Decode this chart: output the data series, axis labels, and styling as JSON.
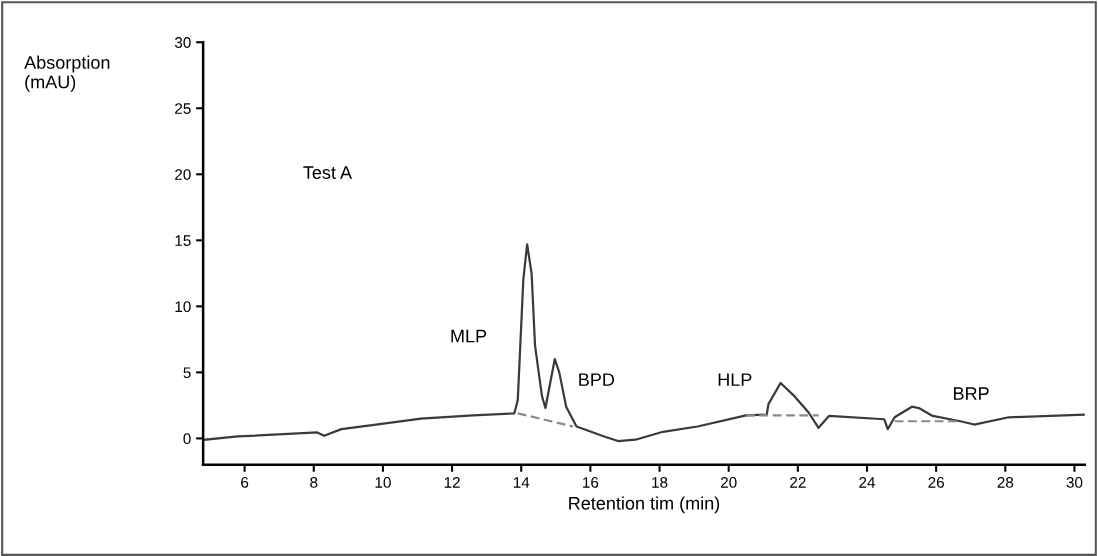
{
  "chart_data": {
    "type": "line",
    "xlabel": "Retention tim (min)",
    "ylabel": "Absorption\n(mAU)",
    "xlim": [
      4.8,
      30.3
    ],
    "xticks": [
      6,
      8,
      10,
      12,
      14,
      16,
      18,
      20,
      22,
      24,
      26,
      28,
      30
    ],
    "ylim": [
      -2,
      30
    ],
    "yticks": [
      0,
      5,
      10,
      15,
      20,
      25,
      30
    ],
    "grid": false,
    "marker": "none",
    "series": [
      {
        "color": "#3a3a3a",
        "line_style": "solid",
        "x": [
          4.86,
          5.8,
          8.1,
          8.3,
          8.8,
          9.8,
          11.1,
          12.6,
          13.8,
          13.9,
          14.06,
          14.17,
          14.3,
          14.4,
          14.6,
          14.7,
          14.86,
          14.97,
          15.1,
          15.3,
          15.5,
          15.6,
          16.4,
          16.8,
          17.3,
          18.1,
          19.1,
          20.5,
          21.1,
          21.15,
          21.5,
          21.9,
          22.3,
          22.6,
          22.9,
          24.5,
          24.6,
          24.8,
          25.3,
          25.5,
          25.9,
          26.7,
          27.1,
          28.1,
          30.3
        ],
        "values": [
          -0.1,
          0.15,
          0.45,
          0.2,
          0.7,
          1.05,
          1.5,
          1.75,
          1.9,
          2.9,
          12.0,
          14.7,
          12.5,
          7.0,
          3.2,
          2.3,
          4.5,
          6.0,
          5.0,
          2.4,
          1.4,
          0.9,
          0.15,
          -0.2,
          -0.1,
          0.5,
          0.9,
          1.75,
          1.8,
          2.6,
          4.2,
          3.2,
          2.0,
          0.8,
          1.7,
          1.45,
          0.7,
          1.6,
          2.4,
          2.3,
          1.7,
          1.3,
          1.05,
          1.6,
          1.8
        ]
      },
      {
        "color": "#8a8a8a",
        "line_style": "dashed",
        "x": [
          13.9,
          15.5,
          15.6,
          20.5,
          22.6,
          22.7,
          24.8,
          26.7
        ],
        "values": [
          1.9,
          0.9,
          null,
          1.75,
          1.75,
          null,
          1.3,
          1.3
        ]
      }
    ],
    "annotations": [
      "Test A",
      "MLP",
      "BPD",
      "HLP",
      "BRP"
    ]
  }
}
